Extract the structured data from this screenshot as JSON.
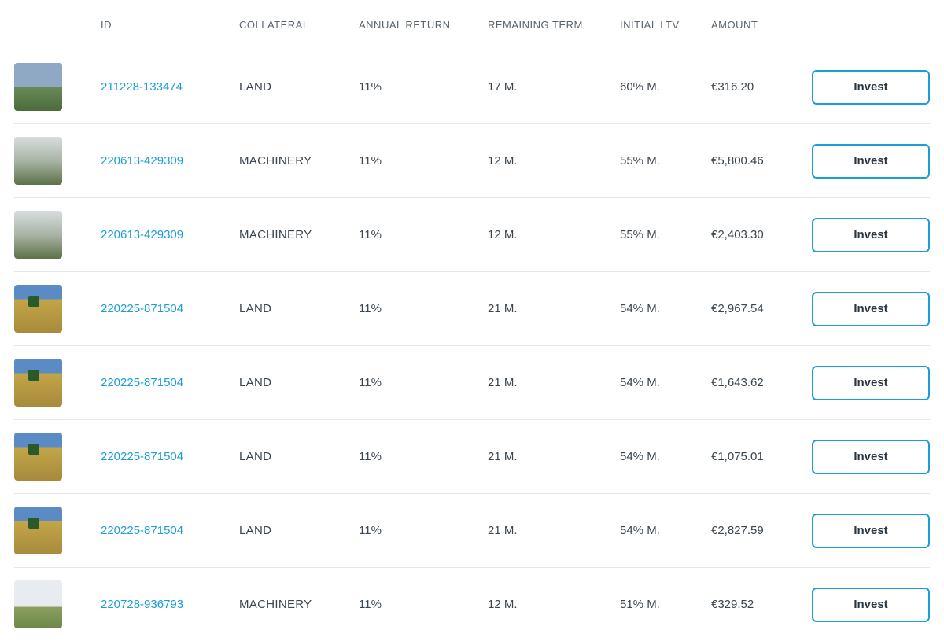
{
  "colors": {
    "link": "#1b9ed8",
    "border": "#e5e8eb",
    "button_border": "#1b9ed8",
    "text": "#3a4550",
    "header_text": "#5a6570",
    "background": "#ffffff"
  },
  "headers": {
    "id": "ID",
    "collateral": "COLLATERAL",
    "annual_return": "ANNUAL RETURN",
    "remaining_term": "REMAINING TERM",
    "initial_ltv": "INITIAL LTV",
    "amount": "AMOUNT"
  },
  "button_label": "Invest",
  "rows": [
    {
      "thumb": "thumb-1",
      "id": "211228-133474",
      "collateral": "LAND",
      "annual_return": "11%",
      "remaining_term": "17 M.",
      "initial_ltv": "60% M.",
      "amount": "€316.20"
    },
    {
      "thumb": "thumb-2",
      "id": "220613-429309",
      "collateral": "MACHINERY",
      "annual_return": "11%",
      "remaining_term": "12 M.",
      "initial_ltv": "55% M.",
      "amount": "€5,800.46"
    },
    {
      "thumb": "thumb-2",
      "id": "220613-429309",
      "collateral": "MACHINERY",
      "annual_return": "11%",
      "remaining_term": "12 M.",
      "initial_ltv": "55% M.",
      "amount": "€2,403.30"
    },
    {
      "thumb": "thumb-3",
      "id": "220225-871504",
      "collateral": "LAND",
      "annual_return": "11%",
      "remaining_term": "21 M.",
      "initial_ltv": "54% M.",
      "amount": "€2,967.54"
    },
    {
      "thumb": "thumb-3",
      "id": "220225-871504",
      "collateral": "LAND",
      "annual_return": "11%",
      "remaining_term": "21 M.",
      "initial_ltv": "54% M.",
      "amount": "€1,643.62"
    },
    {
      "thumb": "thumb-3",
      "id": "220225-871504",
      "collateral": "LAND",
      "annual_return": "11%",
      "remaining_term": "21 M.",
      "initial_ltv": "54% M.",
      "amount": "€1,075.01"
    },
    {
      "thumb": "thumb-3",
      "id": "220225-871504",
      "collateral": "LAND",
      "annual_return": "11%",
      "remaining_term": "21 M.",
      "initial_ltv": "54% M.",
      "amount": "€2,827.59"
    },
    {
      "thumb": "thumb-4",
      "id": "220728-936793",
      "collateral": "MACHINERY",
      "annual_return": "11%",
      "remaining_term": "12 M.",
      "initial_ltv": "51% M.",
      "amount": "€329.52"
    }
  ]
}
